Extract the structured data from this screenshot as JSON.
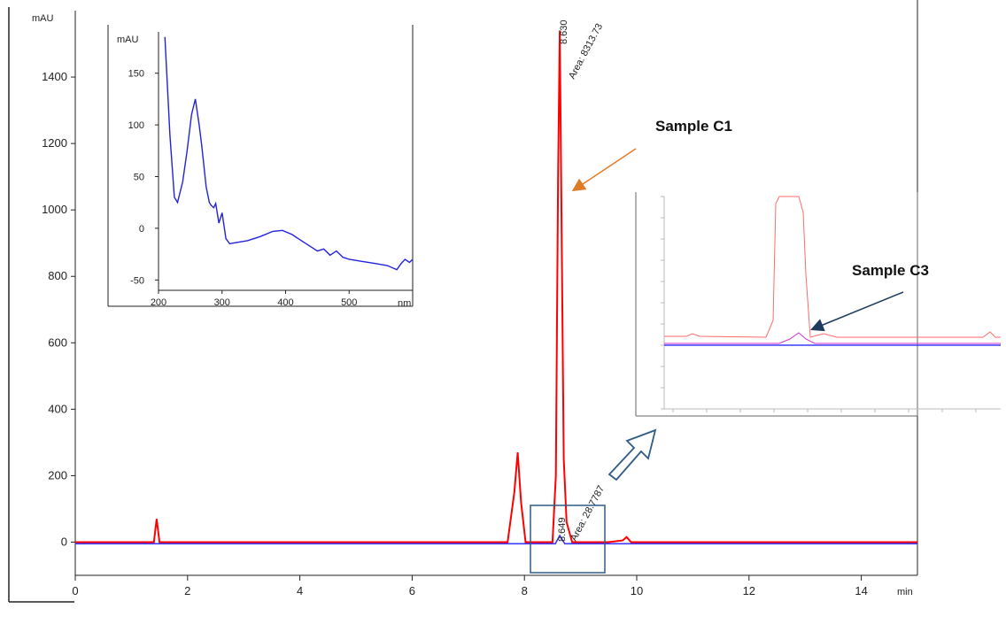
{
  "chart_data": [
    {
      "type": "line",
      "ylabel": "mAU",
      "xlabel": "min",
      "xlim": [
        0,
        15
      ],
      "ylim": [
        -100,
        1600
      ],
      "x_ticks": [
        0,
        2,
        4,
        6,
        8,
        10,
        12,
        14
      ],
      "y_ticks": [
        0,
        200,
        400,
        600,
        800,
        1000,
        1200,
        1400
      ],
      "series": [
        {
          "name": "Sample C1",
          "color": "#ff0000",
          "x": [
            0,
            1.4,
            1.45,
            1.5,
            1.6,
            3,
            5,
            6.5,
            7.7,
            7.82,
            7.88,
            7.94,
            8.02,
            8.5,
            8.56,
            8.6,
            8.63,
            8.66,
            8.7,
            8.75,
            8.85,
            9.5,
            9.75,
            9.82,
            9.9,
            10.5,
            12,
            15
          ],
          "values": [
            0,
            0,
            70,
            0,
            0,
            0,
            0,
            0,
            0,
            150,
            270,
            120,
            0,
            0,
            200,
            1100,
            1540,
            1000,
            250,
            60,
            0,
            0,
            5,
            15,
            0,
            0,
            0,
            0
          ]
        },
        {
          "name": "Sample C3",
          "color": "#3b3bff",
          "x": [
            0,
            8.55,
            8.63,
            8.72,
            15
          ],
          "values": [
            -5,
            -5,
            20,
            -5,
            -5
          ]
        }
      ],
      "peak_labels": [
        {
          "time": "8.630",
          "area": "Area: 8313.73"
        },
        {
          "time": "8.649",
          "area": "Area: 28.7787"
        }
      ],
      "annotations": [
        "Sample C1",
        "Sample C3"
      ]
    },
    {
      "type": "line",
      "ylabel": "mAU",
      "xlabel": "nm",
      "xlim": [
        200,
        600
      ],
      "ylim": [
        -60,
        190
      ],
      "x_ticks": [
        200,
        300,
        400,
        500
      ],
      "y_ticks": [
        -50,
        0,
        50,
        100,
        150
      ],
      "series": [
        {
          "name": "UV spectrum",
          "color": "#2222dd",
          "x": [
            210,
            213,
            218,
            225,
            230,
            238,
            245,
            252,
            258,
            264,
            268,
            275,
            280,
            283,
            287,
            290,
            295,
            300,
            306,
            312,
            320,
            340,
            360,
            380,
            395,
            410,
            425,
            440,
            450,
            460,
            470,
            480,
            490,
            500,
            520,
            540,
            560,
            575,
            582,
            588,
            595,
            600
          ],
          "values": [
            185,
            150,
            90,
            30,
            25,
            45,
            75,
            110,
            125,
            100,
            80,
            40,
            25,
            22,
            20,
            24,
            5,
            15,
            -10,
            -15,
            -14,
            -12,
            -8,
            -3,
            -2,
            -6,
            -12,
            -18,
            -22,
            -20,
            -26,
            -22,
            -28,
            -30,
            -32,
            -34,
            -36,
            -40,
            -34,
            -30,
            -33,
            -30
          ]
        }
      ]
    },
    {
      "type": "line",
      "ylabel": "",
      "xlabel": "",
      "grid": true,
      "series": [
        {
          "name": "Sample C1",
          "color": "#ff6666"
        },
        {
          "name": "Sample C3",
          "color": "#cc33cc"
        }
      ]
    }
  ],
  "callouts": {
    "c1": "Sample C1",
    "c3": "Sample C3"
  }
}
